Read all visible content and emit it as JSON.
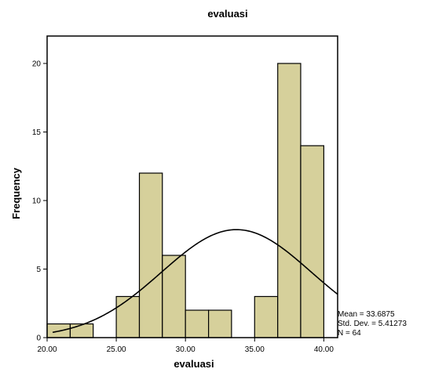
{
  "chart_data": {
    "type": "bar",
    "subtype": "histogram",
    "title": "evaluasi",
    "xlabel": "evaluasi",
    "ylabel": "Frequency",
    "bin_width": 1.67,
    "bins": [
      {
        "start": 20.0,
        "end": 21.67,
        "count": 1
      },
      {
        "start": 21.67,
        "end": 23.33,
        "count": 1
      },
      {
        "start": 23.33,
        "end": 25.0,
        "count": 0
      },
      {
        "start": 25.0,
        "end": 26.67,
        "count": 3
      },
      {
        "start": 26.67,
        "end": 28.33,
        "count": 12
      },
      {
        "start": 28.33,
        "end": 30.0,
        "count": 6
      },
      {
        "start": 30.0,
        "end": 31.67,
        "count": 2
      },
      {
        "start": 31.67,
        "end": 33.33,
        "count": 2
      },
      {
        "start": 33.33,
        "end": 35.0,
        "count": 0
      },
      {
        "start": 35.0,
        "end": 36.67,
        "count": 3
      },
      {
        "start": 36.67,
        "end": 38.33,
        "count": 20
      },
      {
        "start": 38.33,
        "end": 40.0,
        "count": 14
      }
    ],
    "xlim": [
      20.0,
      41.0
    ],
    "ylim": [
      0,
      22
    ],
    "x_ticks": [
      {
        "value": 20,
        "label": "20.00"
      },
      {
        "value": 25,
        "label": "25.00"
      },
      {
        "value": 30,
        "label": "30.00"
      },
      {
        "value": 35,
        "label": "35.00"
      },
      {
        "value": 40,
        "label": "40.00"
      }
    ],
    "y_ticks": [
      {
        "value": 0,
        "label": "0"
      },
      {
        "value": 5,
        "label": "5"
      },
      {
        "value": 10,
        "label": "10"
      },
      {
        "value": 15,
        "label": "15"
      },
      {
        "value": 20,
        "label": "20"
      }
    ],
    "normal_curve": {
      "mean": 33.6875,
      "sd": 5.41273,
      "n": 64
    },
    "stats_lines": [
      "Mean = 33.6875",
      "Std. Dev. = 5.41273",
      "N = 64"
    ],
    "colors": {
      "bar_fill": "#d6d09b",
      "bar_stroke": "#000000",
      "curve": "#000000",
      "frame": "#000000"
    },
    "grid": false,
    "legend": "none"
  }
}
